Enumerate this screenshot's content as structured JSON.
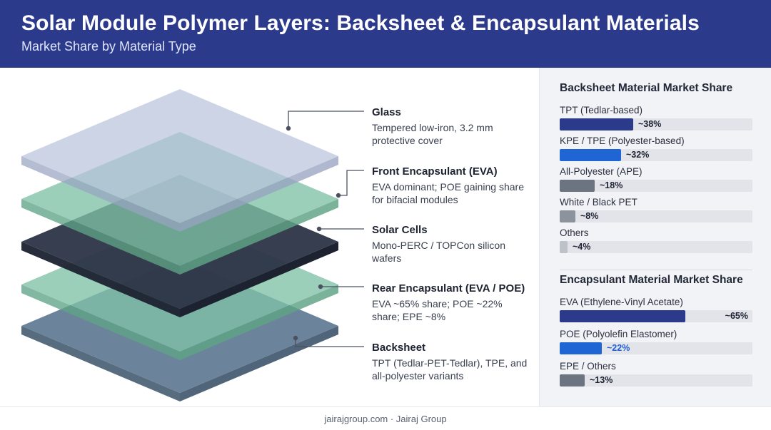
{
  "header": {
    "title": "Solar Module Polymer Layers: Backsheet & Encapsulant Materials",
    "subtitle": "Market Share by Material Type"
  },
  "layers": [
    {
      "title": "Glass",
      "desc": "Tempered low-iron, 3.2 mm protective cover",
      "color": "#b9c3dc"
    },
    {
      "title": "Front Encapsulant (EVA)",
      "desc": "EVA dominant; POE gaining share for bifacial modules",
      "color": "#7fc2a6"
    },
    {
      "title": "Solar Cells",
      "desc": "Mono-PERC / TOPCon silicon wafers",
      "color": "#2c3446"
    },
    {
      "title": "Rear Encapsulant (EVA / POE)",
      "desc": "EVA ~65% share; POE ~22% share; EPE ~8%",
      "color": "#7fc2a6"
    },
    {
      "title": "Backsheet",
      "desc": "TPT (Tedlar-PET-Tedlar), TPE, and all-polyester variants",
      "color": "#5f7a93"
    }
  ],
  "chart_data": [
    {
      "type": "bar",
      "title": "Backsheet Material Market Share",
      "categories": [
        "TPT (Tedlar-based)",
        "KPE / TPE (Polyester-based)",
        "All-Polyester (APE)",
        "White / Black PET",
        "Others"
      ],
      "values": [
        38,
        32,
        18,
        8,
        4
      ],
      "value_labels": [
        "~38%",
        "~32%",
        "~18%",
        "~8%",
        "~4%"
      ],
      "colors": [
        "#2c3a8c",
        "#1f66d4",
        "#6b7480",
        "#8c939c",
        "#bdc1c8"
      ],
      "ylim": [
        0,
        100
      ]
    },
    {
      "type": "bar",
      "title": "Encapsulant Material Market Share",
      "categories": [
        "EVA (Ethylene-Vinyl Acetate)",
        "POE (Polyolefin Elastomer)",
        "EPE / Others"
      ],
      "values": [
        65,
        22,
        13
      ],
      "value_labels": [
        "~65%",
        "~22%",
        "~13%"
      ],
      "colors": [
        "#2c3a8c",
        "#1f66d4",
        "#6b7480"
      ],
      "ylim": [
        0,
        100
      ]
    }
  ],
  "footer": {
    "site": "jairajgroup.com",
    "separator": "·",
    "company": "Jairaj Group",
    "text": "jairajgroup.com · Jairaj Group"
  }
}
